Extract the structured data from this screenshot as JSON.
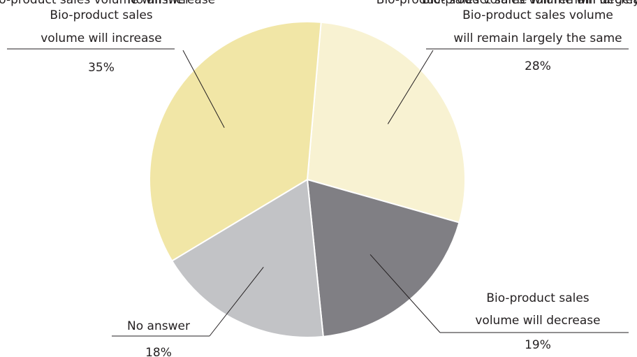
{
  "chart_data": {
    "type": "pie",
    "categories": [
      "Bio-product sales volume will remain largely the same",
      "Bio-product sales volume will decrease",
      "No answer",
      "Bio-product sales volume will increase"
    ],
    "values": [
      28,
      19,
      18,
      35
    ],
    "value_labels": [
      "28%",
      "19%",
      "18%",
      "35%"
    ],
    "colors": [
      "#f8f2d2",
      "#807f84",
      "#c2c3c6",
      "#f1e6a6"
    ]
  }
}
